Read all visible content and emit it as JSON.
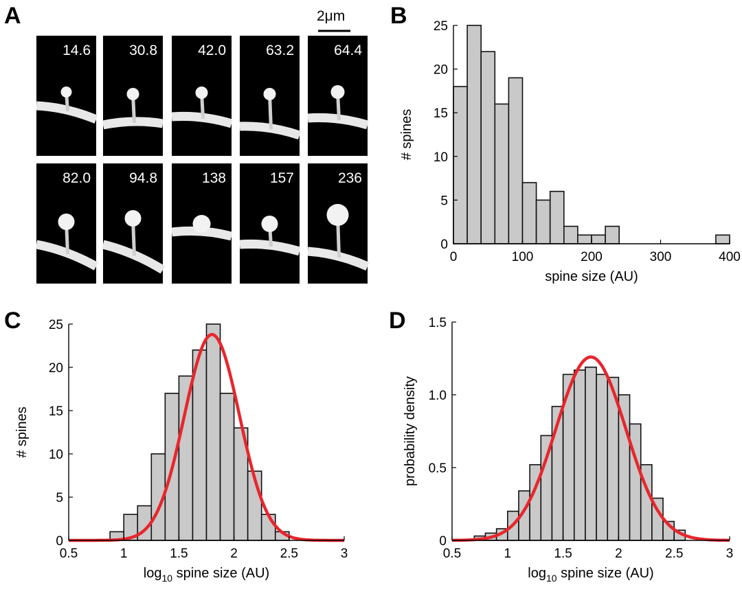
{
  "figure": {
    "panel_labels": [
      "A",
      "B",
      "C",
      "D"
    ],
    "scale_bar_label": "2μm"
  },
  "chart_data": [
    {
      "panel": "A",
      "type": "image-grid",
      "description_labels": [
        "14.6",
        "30.8",
        "42.0",
        "63.2",
        "64.4",
        "82.0",
        "94.8",
        "138",
        "157",
        "236"
      ]
    },
    {
      "panel": "B",
      "type": "bar",
      "xlabel": "spine size (AU)",
      "ylabel": "# spines",
      "bin_width": 20,
      "bin_starts": [
        0,
        20,
        40,
        60,
        80,
        100,
        120,
        140,
        160,
        180,
        200,
        220,
        240,
        260,
        280,
        300,
        320,
        340,
        360,
        380
      ],
      "values": [
        18,
        25,
        22,
        16,
        19,
        7,
        5,
        6,
        2,
        1,
        1,
        2,
        0,
        0,
        0,
        0,
        0,
        0,
        0,
        1
      ],
      "xlim": [
        0,
        400
      ],
      "ylim": [
        0,
        25
      ],
      "xticks": [
        "0",
        "100",
        "200",
        "300",
        "400"
      ],
      "yticks": [
        "0",
        "5",
        "10",
        "15",
        "20",
        "25"
      ]
    },
    {
      "panel": "C",
      "type": "bar",
      "xlabel_base": "log",
      "xlabel_sub": "10",
      "xlabel_rest": " spine size (AU)",
      "ylabel": "# spines",
      "bin_width": 0.125,
      "bin_starts": [
        0.875,
        1.0,
        1.125,
        1.25,
        1.375,
        1.5,
        1.625,
        1.75,
        1.875,
        2.0,
        2.125,
        2.25,
        2.375,
        2.5
      ],
      "values": [
        1,
        3,
        4,
        10,
        17,
        19,
        22,
        25,
        17,
        13,
        8,
        3,
        1,
        0
      ],
      "fit": {
        "name": "gaussian fit",
        "mean": 1.8,
        "sd": 0.25,
        "peak": 23.8,
        "color": "#e8262c"
      },
      "xlim": [
        0.5,
        3
      ],
      "ylim": [
        0,
        25
      ],
      "xticks": [
        "0.5",
        "1",
        "1.5",
        "2",
        "2.5",
        "3"
      ],
      "yticks": [
        "0",
        "5",
        "10",
        "15",
        "20",
        "25"
      ]
    },
    {
      "panel": "D",
      "type": "bar",
      "xlabel_base": "log",
      "xlabel_sub": "10",
      "xlabel_rest": " spine size (AU)",
      "ylabel": "probability density",
      "bin_width": 0.1,
      "bin_starts": [
        0.7,
        0.8,
        0.9,
        1.0,
        1.1,
        1.2,
        1.3,
        1.4,
        1.5,
        1.6,
        1.7,
        1.8,
        1.9,
        2.0,
        2.1,
        2.2,
        2.3,
        2.4,
        2.5
      ],
      "values": [
        0.03,
        0.05,
        0.08,
        0.2,
        0.34,
        0.52,
        0.72,
        0.92,
        1.14,
        1.17,
        1.19,
        1.14,
        1.12,
        1.0,
        0.8,
        0.52,
        0.29,
        0.13,
        0.07
      ],
      "fit": {
        "name": "gaussian fit",
        "mean": 1.75,
        "sd": 0.316,
        "peak": 1.26,
        "color": "#e8262c"
      },
      "xlim": [
        0.5,
        3
      ],
      "ylim": [
        0,
        1.5
      ],
      "xticks": [
        "0.5",
        "1",
        "1.5",
        "2",
        "2.5",
        "3"
      ],
      "yticks": [
        "0",
        "0.5",
        "1.0",
        "1.5"
      ]
    }
  ]
}
